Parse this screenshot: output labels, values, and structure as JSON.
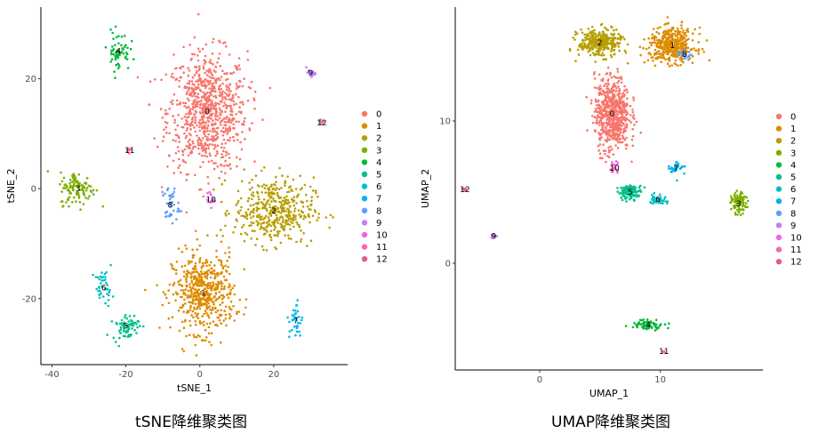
{
  "captions": [
    "tSNE降维聚类图",
    "UMAP降维聚类图"
  ],
  "colors": [
    "#F8766D",
    "#DE8C00",
    "#B79F00",
    "#7CAE00",
    "#00BA38",
    "#00C08B",
    "#00BFC4",
    "#00B4F0",
    "#619CFF",
    "#C77CFF",
    "#F564E3",
    "#FF64B0",
    "#E6579A"
  ],
  "chart_data": [
    {
      "type": "scatter",
      "title": "",
      "xlabel": "tSNE_1",
      "ylabel": "tSNE_2",
      "xlim": [
        -43,
        40
      ],
      "ylim": [
        -32,
        33
      ],
      "xticks": [
        -40,
        -20,
        0,
        20
      ],
      "yticks": [
        -20,
        0,
        20
      ],
      "legend": {
        "position": "right",
        "labels": [
          "0",
          "1",
          "2",
          "3",
          "4",
          "5",
          "6",
          "7",
          "8",
          "9",
          "10",
          "11",
          "12"
        ]
      },
      "grid": false,
      "clusters": [
        {
          "id": "0",
          "label": "0",
          "center": [
            2,
            14
          ],
          "spread": [
            9,
            9
          ],
          "n": 800
        },
        {
          "id": "1",
          "label": "1",
          "center": [
            1,
            -19
          ],
          "spread": [
            7,
            6
          ],
          "n": 520
        },
        {
          "id": "2",
          "label": "2",
          "center": [
            20,
            -4
          ],
          "spread": [
            9,
            5
          ],
          "n": 420
        },
        {
          "id": "3",
          "label": "3",
          "center": [
            -33,
            0
          ],
          "spread": [
            4,
            2.5
          ],
          "n": 110
        },
        {
          "id": "4",
          "label": "4",
          "center": [
            -22,
            25
          ],
          "spread": [
            2.5,
            3
          ],
          "n": 60
        },
        {
          "id": "5",
          "label": "5",
          "center": [
            -20,
            -25
          ],
          "spread": [
            3,
            2
          ],
          "n": 70
        },
        {
          "id": "6",
          "label": "6",
          "center": [
            -26,
            -18
          ],
          "spread": [
            2,
            2.5
          ],
          "n": 40
        },
        {
          "id": "7",
          "label": "7",
          "center": [
            26,
            -24
          ],
          "spread": [
            1.5,
            3
          ],
          "n": 35
        },
        {
          "id": "8",
          "label": "8",
          "center": [
            -8,
            -3
          ],
          "spread": [
            2,
            3
          ],
          "n": 40
        },
        {
          "id": "9",
          "label": "9",
          "center": [
            30,
            21
          ],
          "spread": [
            1,
            0.5
          ],
          "n": 18
        },
        {
          "id": "10",
          "label": "10",
          "center": [
            3,
            -2
          ],
          "spread": [
            1,
            1
          ],
          "n": 15
        },
        {
          "id": "11",
          "label": "11",
          "center": [
            -19,
            7
          ],
          "spread": [
            0.5,
            0.6
          ],
          "n": 6
        },
        {
          "id": "12",
          "label": "12",
          "center": [
            33,
            12
          ],
          "spread": [
            0.5,
            0.5
          ],
          "n": 6
        }
      ]
    },
    {
      "type": "scatter",
      "title": "",
      "xlabel": "UMAP_1",
      "ylabel": "UMAP_2",
      "xlim": [
        -7,
        18.5
      ],
      "ylim": [
        -7.5,
        18
      ],
      "xticks": [
        0,
        10
      ],
      "yticks": [
        0,
        10
      ],
      "legend": {
        "position": "right",
        "labels": [
          "0",
          "1",
          "2",
          "3",
          "4",
          "5",
          "6",
          "7",
          "8",
          "9",
          "10",
          "11",
          "12"
        ]
      },
      "grid": false,
      "clusters": [
        {
          "id": "0",
          "label": "0",
          "center": [
            6,
            10.5
          ],
          "spread": [
            1.2,
            2.2
          ],
          "n": 650
        },
        {
          "id": "1",
          "label": "1",
          "center": [
            11,
            15.3
          ],
          "spread": [
            1.6,
            1
          ],
          "n": 420
        },
        {
          "id": "2",
          "label": "2",
          "center": [
            5,
            15.5
          ],
          "spread": [
            1.5,
            0.8
          ],
          "n": 320
        },
        {
          "id": "3",
          "label": "3",
          "center": [
            16.5,
            4.2
          ],
          "spread": [
            0.5,
            0.6
          ],
          "n": 100
        },
        {
          "id": "4",
          "label": "4",
          "center": [
            9,
            -4.3
          ],
          "spread": [
            1.2,
            0.3
          ],
          "n": 70
        },
        {
          "id": "5",
          "label": "5",
          "center": [
            7.5,
            5
          ],
          "spread": [
            0.8,
            0.4
          ],
          "n": 110
        },
        {
          "id": "6",
          "label": "6",
          "center": [
            9.8,
            4.5
          ],
          "spread": [
            0.6,
            0.3
          ],
          "n": 40
        },
        {
          "id": "7",
          "label": "7",
          "center": [
            11.3,
            6.7
          ],
          "spread": [
            0.6,
            0.5
          ],
          "n": 30
        },
        {
          "id": "8",
          "label": "8",
          "center": [
            12,
            14.7
          ],
          "spread": [
            0.5,
            0.3
          ],
          "n": 20
        },
        {
          "id": "9",
          "label": "9",
          "center": [
            -3.8,
            1.9
          ],
          "spread": [
            0.2,
            0.15
          ],
          "n": 15
        },
        {
          "id": "10",
          "label": "10",
          "center": [
            6.2,
            6.7
          ],
          "spread": [
            0.3,
            0.4
          ],
          "n": 15
        },
        {
          "id": "11",
          "label": "11",
          "center": [
            10.3,
            -6.2
          ],
          "spread": [
            0.15,
            0.1
          ],
          "n": 6
        },
        {
          "id": "12",
          "label": "12",
          "center": [
            -6.2,
            5.2
          ],
          "spread": [
            0.15,
            0.1
          ],
          "n": 5
        }
      ]
    }
  ]
}
